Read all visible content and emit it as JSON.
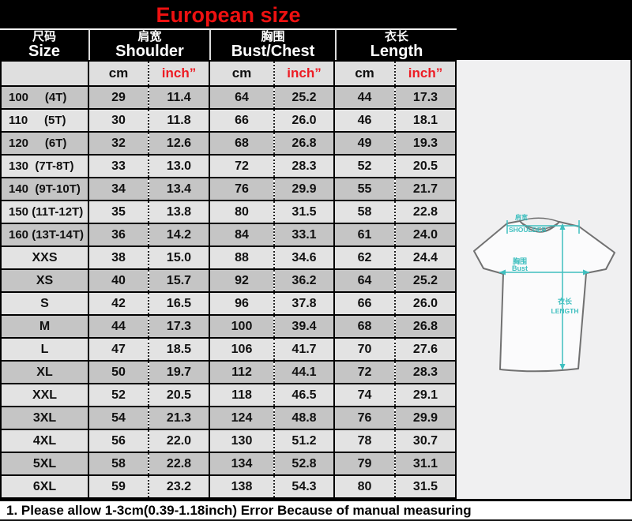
{
  "title": "European size",
  "colors": {
    "title_red": "#ee1111",
    "inch_red": "#ed1c24",
    "diagram_teal": "#3fbfbf",
    "header_black": "#000000",
    "row_dark": "#c5c5c5",
    "row_light": "#e3e3e3"
  },
  "header": {
    "columns": [
      {
        "zh": "尺码",
        "en": "Size"
      },
      {
        "zh": "肩宽",
        "en": "Shoulder"
      },
      {
        "zh": "胸围",
        "en": "Bust/Chest"
      },
      {
        "zh": "衣长",
        "en": "Length"
      }
    ],
    "unit_cm": "cm",
    "unit_inch": "inch”"
  },
  "table": {
    "rows": [
      {
        "size": "100     (4T)",
        "shoulder_cm": "29",
        "shoulder_inch": "11.4",
        "bust_cm": "64",
        "bust_inch": "25.2",
        "length_cm": "44",
        "length_inch": "17.3"
      },
      {
        "size": "110     (5T)",
        "shoulder_cm": "30",
        "shoulder_inch": "11.8",
        "bust_cm": "66",
        "bust_inch": "26.0",
        "length_cm": "46",
        "length_inch": "18.1"
      },
      {
        "size": "120     (6T)",
        "shoulder_cm": "32",
        "shoulder_inch": "12.6",
        "bust_cm": "68",
        "bust_inch": "26.8",
        "length_cm": "49",
        "length_inch": "19.3"
      },
      {
        "size": "130  (7T-8T)",
        "shoulder_cm": "33",
        "shoulder_inch": "13.0",
        "bust_cm": "72",
        "bust_inch": "28.3",
        "length_cm": "52",
        "length_inch": "20.5"
      },
      {
        "size": "140  (9T-10T)",
        "shoulder_cm": "34",
        "shoulder_inch": "13.4",
        "bust_cm": "76",
        "bust_inch": "29.9",
        "length_cm": "55",
        "length_inch": "21.7"
      },
      {
        "size": "150 (11T-12T)",
        "shoulder_cm": "35",
        "shoulder_inch": "13.8",
        "bust_cm": "80",
        "bust_inch": "31.5",
        "length_cm": "58",
        "length_inch": "22.8"
      },
      {
        "size": "160 (13T-14T)",
        "shoulder_cm": "36",
        "shoulder_inch": "14.2",
        "bust_cm": "84",
        "bust_inch": "33.1",
        "length_cm": "61",
        "length_inch": "24.0"
      },
      {
        "size": "XXS",
        "shoulder_cm": "38",
        "shoulder_inch": "15.0",
        "bust_cm": "88",
        "bust_inch": "34.6",
        "length_cm": "62",
        "length_inch": "24.4"
      },
      {
        "size": "XS",
        "shoulder_cm": "40",
        "shoulder_inch": "15.7",
        "bust_cm": "92",
        "bust_inch": "36.2",
        "length_cm": "64",
        "length_inch": "25.2"
      },
      {
        "size": "S",
        "shoulder_cm": "42",
        "shoulder_inch": "16.5",
        "bust_cm": "96",
        "bust_inch": "37.8",
        "length_cm": "66",
        "length_inch": "26.0"
      },
      {
        "size": "M",
        "shoulder_cm": "44",
        "shoulder_inch": "17.3",
        "bust_cm": "100",
        "bust_inch": "39.4",
        "length_cm": "68",
        "length_inch": "26.8"
      },
      {
        "size": "L",
        "shoulder_cm": "47",
        "shoulder_inch": "18.5",
        "bust_cm": "106",
        "bust_inch": "41.7",
        "length_cm": "70",
        "length_inch": "27.6"
      },
      {
        "size": "XL",
        "shoulder_cm": "50",
        "shoulder_inch": "19.7",
        "bust_cm": "112",
        "bust_inch": "44.1",
        "length_cm": "72",
        "length_inch": "28.3"
      },
      {
        "size": "XXL",
        "shoulder_cm": "52",
        "shoulder_inch": "20.5",
        "bust_cm": "118",
        "bust_inch": "46.5",
        "length_cm": "74",
        "length_inch": "29.1"
      },
      {
        "size": "3XL",
        "shoulder_cm": "54",
        "shoulder_inch": "21.3",
        "bust_cm": "124",
        "bust_inch": "48.8",
        "length_cm": "76",
        "length_inch": "29.9"
      },
      {
        "size": "4XL",
        "shoulder_cm": "56",
        "shoulder_inch": "22.0",
        "bust_cm": "130",
        "bust_inch": "51.2",
        "length_cm": "78",
        "length_inch": "30.7"
      },
      {
        "size": "5XL",
        "shoulder_cm": "58",
        "shoulder_inch": "22.8",
        "bust_cm": "134",
        "bust_inch": "52.8",
        "length_cm": "79",
        "length_inch": "31.1"
      },
      {
        "size": "6XL",
        "shoulder_cm": "59",
        "shoulder_inch": "23.2",
        "bust_cm": "138",
        "bust_inch": "54.3",
        "length_cm": "80",
        "length_inch": "31.5"
      }
    ]
  },
  "chart_data": {
    "type": "table",
    "title": "European size",
    "columns": [
      "Size",
      "Shoulder cm",
      "Shoulder inch",
      "Bust/Chest cm",
      "Bust/Chest inch",
      "Length cm",
      "Length inch"
    ],
    "rows": [
      [
        "100 (4T)",
        29,
        11.4,
        64,
        25.2,
        44,
        17.3
      ],
      [
        "110 (5T)",
        30,
        11.8,
        66,
        26.0,
        46,
        18.1
      ],
      [
        "120 (6T)",
        32,
        12.6,
        68,
        26.8,
        49,
        19.3
      ],
      [
        "130 (7T-8T)",
        33,
        13.0,
        72,
        28.3,
        52,
        20.5
      ],
      [
        "140 (9T-10T)",
        34,
        13.4,
        76,
        29.9,
        55,
        21.7
      ],
      [
        "150 (11T-12T)",
        35,
        13.8,
        80,
        31.5,
        58,
        22.8
      ],
      [
        "160 (13T-14T)",
        36,
        14.2,
        84,
        33.1,
        61,
        24.0
      ],
      [
        "XXS",
        38,
        15.0,
        88,
        34.6,
        62,
        24.4
      ],
      [
        "XS",
        40,
        15.7,
        92,
        36.2,
        64,
        25.2
      ],
      [
        "S",
        42,
        16.5,
        96,
        37.8,
        66,
        26.0
      ],
      [
        "M",
        44,
        17.3,
        100,
        39.4,
        68,
        26.8
      ],
      [
        "L",
        47,
        18.5,
        106,
        41.7,
        70,
        27.6
      ],
      [
        "XL",
        50,
        19.7,
        112,
        44.1,
        72,
        28.3
      ],
      [
        "XXL",
        52,
        20.5,
        118,
        46.5,
        74,
        29.1
      ],
      [
        "3XL",
        54,
        21.3,
        124,
        48.8,
        76,
        29.9
      ],
      [
        "4XL",
        56,
        22.0,
        130,
        51.2,
        78,
        30.7
      ],
      [
        "5XL",
        58,
        22.8,
        134,
        52.8,
        79,
        31.1
      ],
      [
        "6XL",
        59,
        23.2,
        138,
        54.3,
        80,
        31.5
      ]
    ]
  },
  "diagram": {
    "shoulder_zh": "肩宽",
    "shoulder_en": "SHOULDER",
    "bust_zh": "胸围",
    "bust_en": "Bust",
    "length_zh": "衣长",
    "length_en": "LENGTH"
  },
  "note": "1. Please allow 1-3cm(0.39-1.18inch) Error Because of manual measuring"
}
